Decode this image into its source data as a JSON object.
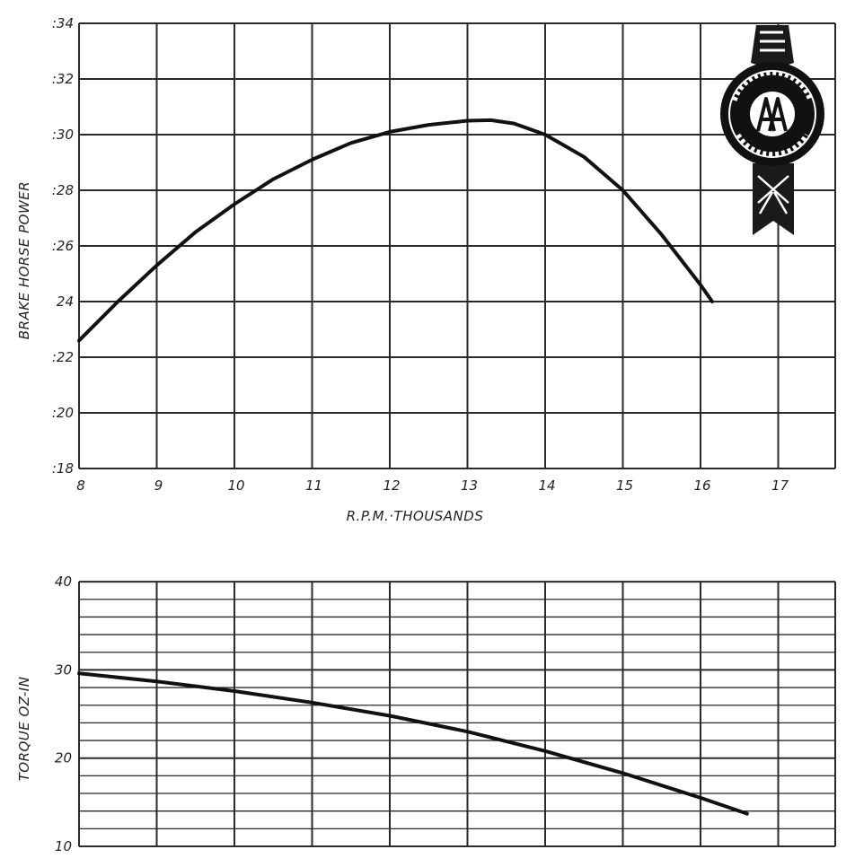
{
  "chart_data": [
    {
      "type": "line",
      "xlabel": "R.P.M.·THOUSANDS",
      "ylabel": "BRAKE HORSE POWER",
      "xlim": [
        8,
        17.8
      ],
      "ylim": [
        18,
        34
      ],
      "x_ticks": [
        "8",
        "9",
        "10",
        "11",
        "12",
        "13",
        "14",
        "15",
        "16",
        "17"
      ],
      "y_ticks": [
        ":18",
        ":20",
        ":22",
        "24",
        ":26",
        ":28",
        ":30",
        ":32",
        ":34"
      ],
      "grid": true,
      "series": [
        {
          "x": [
            8,
            8.5,
            9,
            9.5,
            10,
            10.5,
            11,
            11.5,
            12,
            12.5,
            13,
            13.3,
            13.6,
            14,
            14.5,
            15,
            15.5,
            16,
            16.15
          ],
          "y": [
            22.6,
            24.0,
            25.3,
            26.5,
            27.5,
            28.4,
            29.1,
            29.7,
            30.1,
            30.35,
            30.5,
            30.52,
            30.4,
            30.0,
            29.2,
            28.0,
            26.4,
            24.6,
            24.0
          ]
        }
      ]
    },
    {
      "type": "line",
      "xlabel": "",
      "ylabel": "TORQUE OZ-IN",
      "xlim": [
        8,
        17.8
      ],
      "ylim": [
        10,
        40
      ],
      "y_ticks": [
        "10",
        "20",
        "30",
        "40"
      ],
      "grid": true,
      "series": [
        {
          "x": [
            8,
            9,
            10,
            11,
            12,
            13,
            14,
            15,
            16,
            16.6
          ],
          "y": [
            29.6,
            28.7,
            27.6,
            26.3,
            24.8,
            23.0,
            20.8,
            18.3,
            15.5,
            13.7
          ]
        }
      ]
    }
  ]
}
